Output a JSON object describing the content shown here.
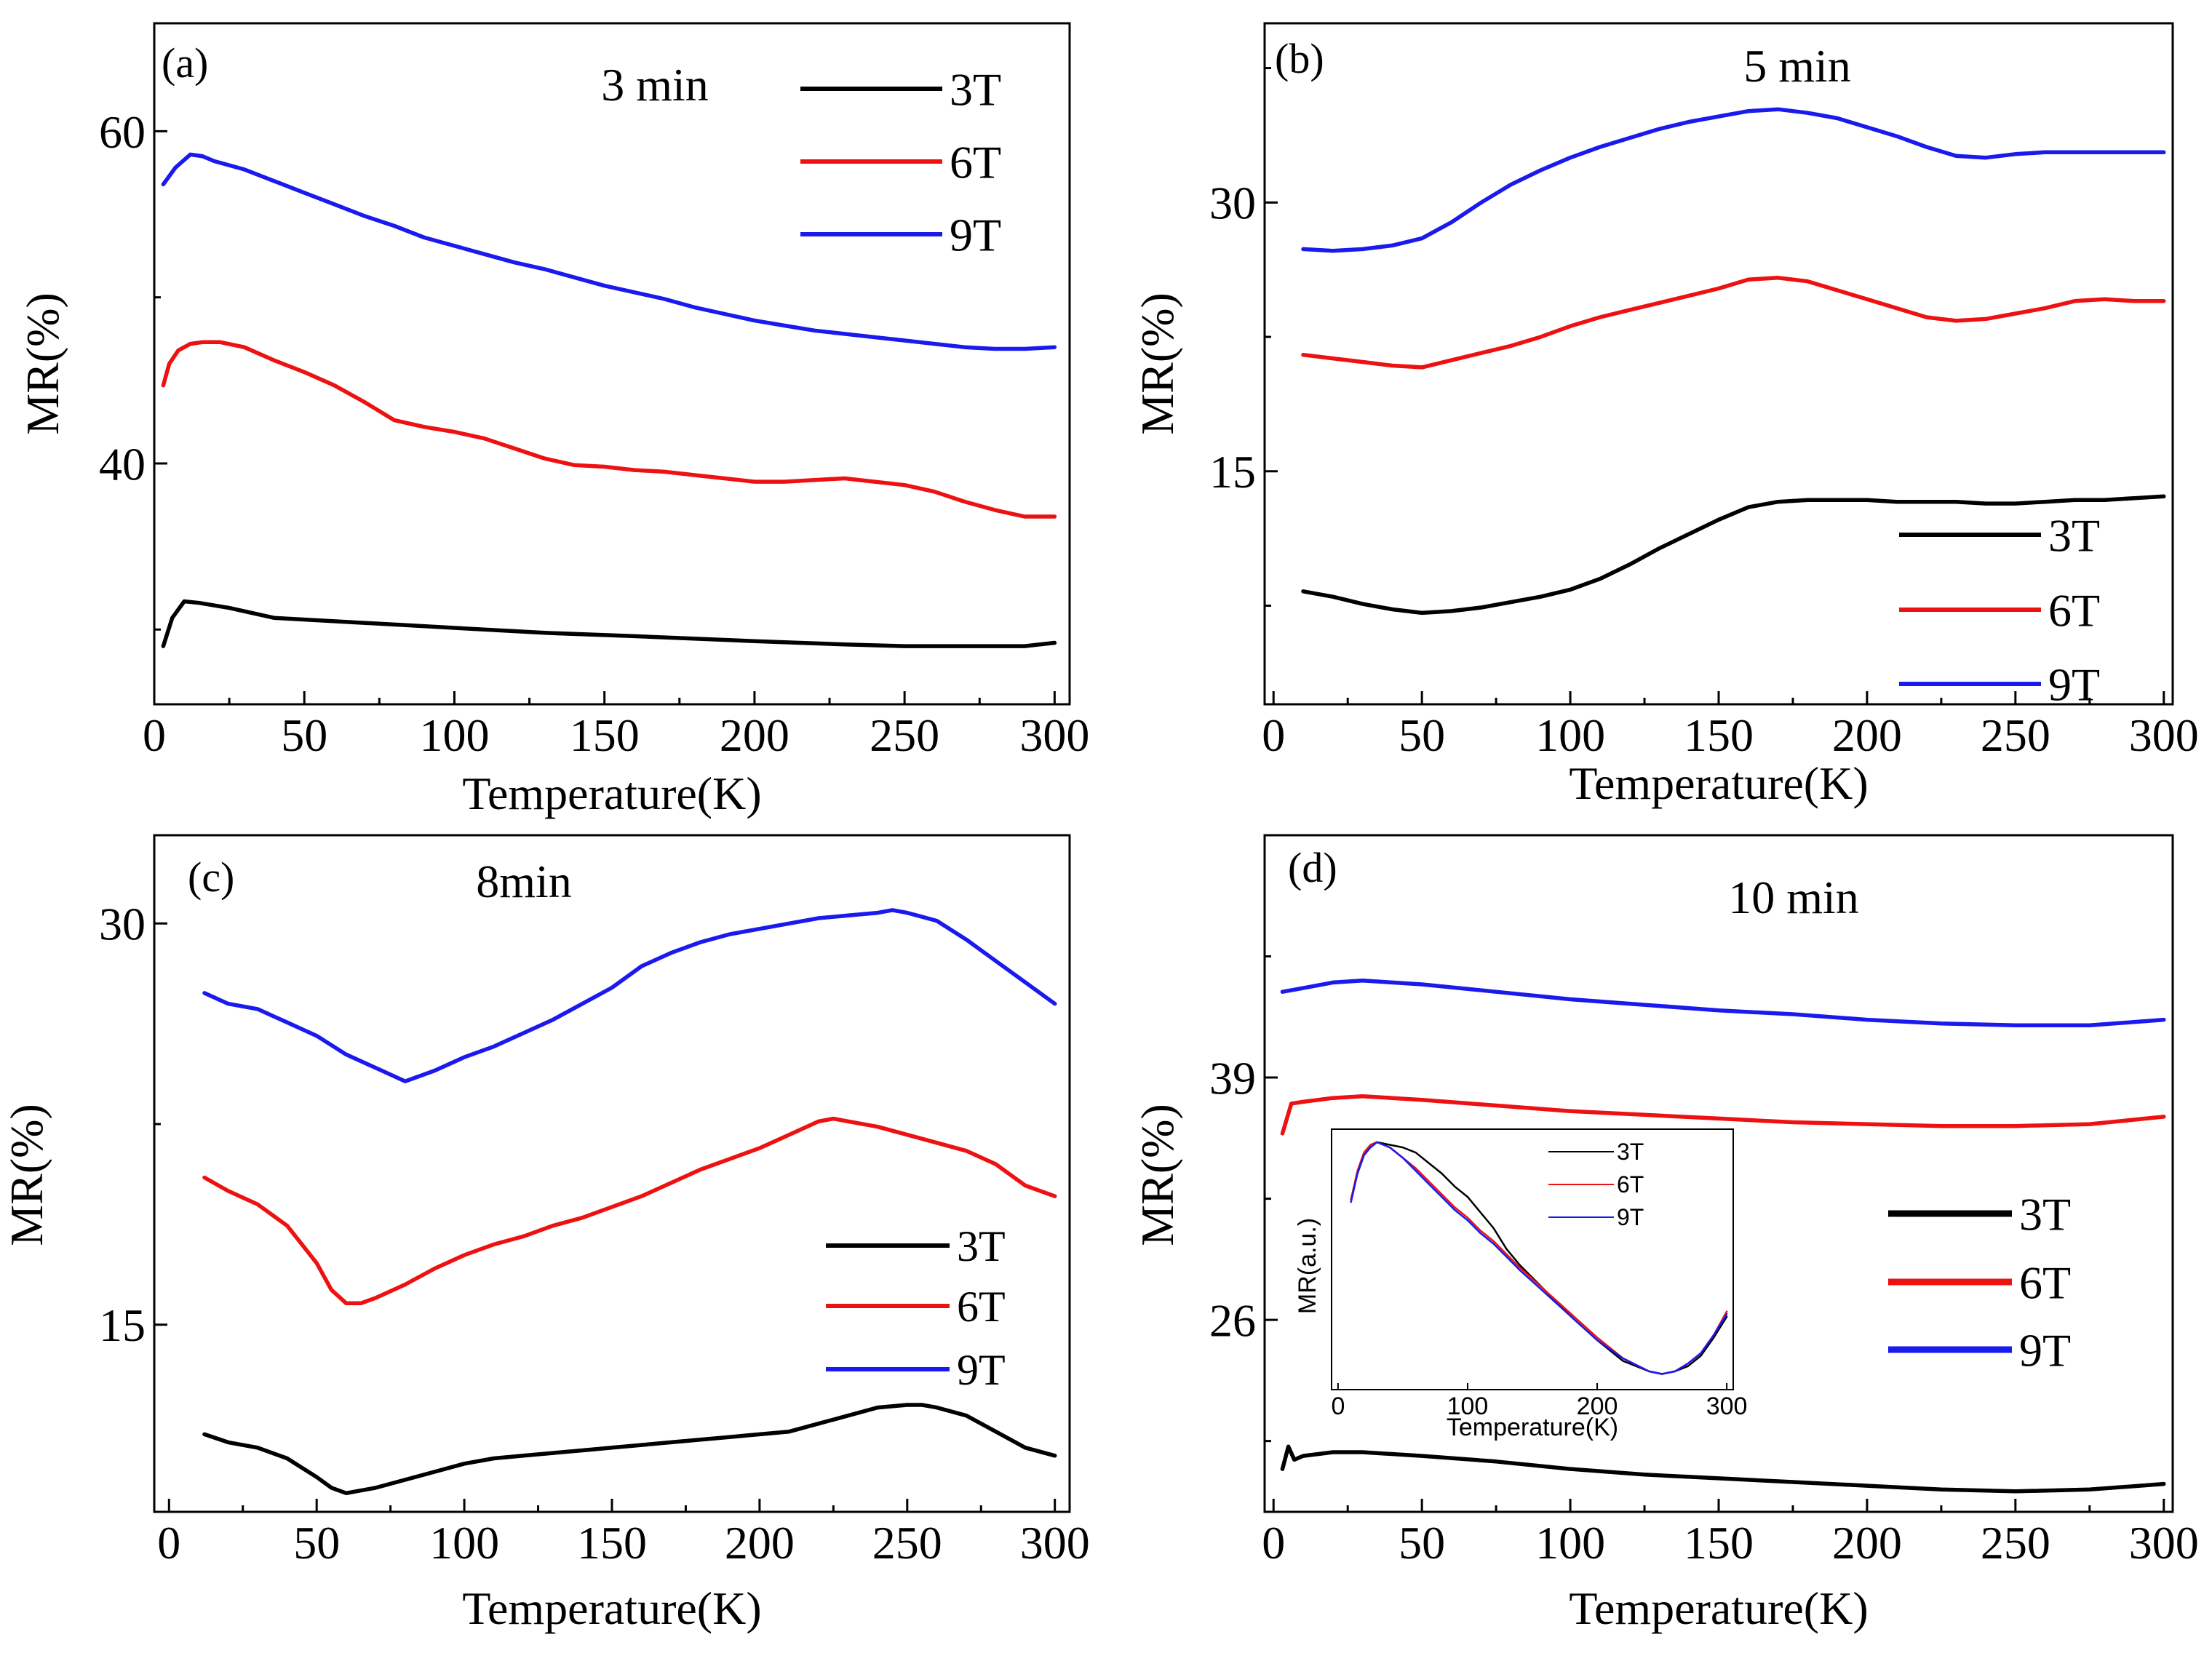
{
  "figure": {
    "panels": [
      "panel_a",
      "panel_b",
      "panel_c",
      "panel_d"
    ]
  },
  "colors": {
    "3T": "#000000",
    "6T": "#ee1111",
    "9T": "#1a1aee"
  },
  "chart_data": [
    {
      "id": "panel_a",
      "type": "line",
      "tag": "(a)",
      "title": "3 min",
      "xlabel": "Temperature(K)",
      "ylabel": "MR(%)",
      "xlim": [
        0,
        305
      ],
      "ylim": [
        25.5,
        66.5
      ],
      "xticks": [
        0,
        50,
        100,
        150,
        200,
        250,
        300
      ],
      "xticklabels": [
        "0",
        "50",
        "100",
        "150",
        "200",
        "250",
        "300"
      ],
      "yticks": [
        40,
        60
      ],
      "yticklabels": [
        "40",
        "60"
      ],
      "legend": [
        "3T",
        "6T",
        "9T"
      ],
      "legend_position": "top-right",
      "series": [
        {
          "name": "3T",
          "x": [
            3,
            6,
            10,
            15,
            25,
            40,
            60,
            80,
            100,
            130,
            160,
            200,
            230,
            250,
            260,
            275,
            290,
            300
          ],
          "y": [
            29,
            30.7,
            31.7,
            31.6,
            31.3,
            30.7,
            30.5,
            30.3,
            30.1,
            29.8,
            29.6,
            29.3,
            29.1,
            29.0,
            29.0,
            29.0,
            29.0,
            29.2
          ]
        },
        {
          "name": "6T",
          "x": [
            3,
            5,
            8,
            12,
            16,
            22,
            30,
            40,
            50,
            60,
            70,
            80,
            90,
            100,
            110,
            120,
            130,
            140,
            150,
            160,
            170,
            180,
            190,
            200,
            210,
            220,
            230,
            240,
            250,
            260,
            270,
            280,
            290,
            300
          ],
          "y": [
            44.7,
            46,
            46.8,
            47.2,
            47.3,
            47.3,
            47,
            46.2,
            45.5,
            44.7,
            43.7,
            42.6,
            42.2,
            41.9,
            41.5,
            40.9,
            40.3,
            39.9,
            39.8,
            39.6,
            39.5,
            39.3,
            39.1,
            38.9,
            38.9,
            39.0,
            39.1,
            38.9,
            38.7,
            38.3,
            37.7,
            37.2,
            36.8,
            36.8
          ]
        },
        {
          "name": "9T",
          "x": [
            3,
            7,
            12,
            16,
            20,
            30,
            40,
            50,
            60,
            70,
            80,
            90,
            100,
            110,
            120,
            130,
            140,
            150,
            160,
            170,
            180,
            190,
            200,
            210,
            220,
            230,
            240,
            250,
            260,
            270,
            280,
            290,
            300
          ],
          "y": [
            56.8,
            57.8,
            58.6,
            58.5,
            58.2,
            57.7,
            57,
            56.3,
            55.6,
            54.9,
            54.3,
            53.6,
            53.1,
            52.6,
            52.1,
            51.7,
            51.2,
            50.7,
            50.3,
            49.9,
            49.4,
            49.0,
            48.6,
            48.3,
            48.0,
            47.8,
            47.6,
            47.4,
            47.2,
            47.0,
            46.9,
            46.9,
            47.0
          ]
        }
      ]
    },
    {
      "id": "panel_b",
      "type": "line",
      "tag": "(b)",
      "title": "5 min",
      "xlabel": "Temperature(K)",
      "ylabel": "MR(%)",
      "xlim": [
        -3,
        303
      ],
      "ylim": [
        2,
        40
      ],
      "xticks": [
        0,
        50,
        100,
        150,
        200,
        250,
        300
      ],
      "xticklabels": [
        "0",
        "50",
        "100",
        "150",
        "200",
        "250",
        "300"
      ],
      "yticks": [
        15,
        30
      ],
      "yticklabels": [
        "15",
        "30"
      ],
      "legend": [
        "3T",
        "6T",
        "9T"
      ],
      "legend_position": "bottom-right",
      "series": [
        {
          "name": "3T",
          "x": [
            10,
            20,
            30,
            40,
            50,
            60,
            70,
            80,
            90,
            100,
            110,
            120,
            130,
            140,
            150,
            160,
            170,
            180,
            190,
            200,
            210,
            220,
            230,
            240,
            250,
            260,
            270,
            280,
            290,
            300
          ],
          "y": [
            8.3,
            8.0,
            7.6,
            7.3,
            7.1,
            7.2,
            7.4,
            7.7,
            8.0,
            8.4,
            9.0,
            9.8,
            10.7,
            11.5,
            12.3,
            13.0,
            13.3,
            13.4,
            13.4,
            13.4,
            13.3,
            13.3,
            13.3,
            13.2,
            13.2,
            13.3,
            13.4,
            13.4,
            13.5,
            13.6
          ]
        },
        {
          "name": "6T",
          "x": [
            10,
            20,
            30,
            40,
            50,
            60,
            70,
            80,
            90,
            100,
            110,
            120,
            130,
            140,
            150,
            160,
            170,
            180,
            190,
            200,
            210,
            220,
            230,
            240,
            250,
            260,
            270,
            280,
            290,
            300
          ],
          "y": [
            21.5,
            21.3,
            21.1,
            20.9,
            20.8,
            21.2,
            21.6,
            22.0,
            22.5,
            23.1,
            23.6,
            24.0,
            24.4,
            24.8,
            25.2,
            25.7,
            25.8,
            25.6,
            25.1,
            24.6,
            24.1,
            23.6,
            23.4,
            23.5,
            23.8,
            24.1,
            24.5,
            24.6,
            24.5,
            24.5
          ]
        },
        {
          "name": "9T",
          "x": [
            10,
            20,
            30,
            40,
            50,
            60,
            70,
            80,
            90,
            100,
            110,
            120,
            130,
            140,
            150,
            160,
            170,
            180,
            190,
            200,
            210,
            220,
            230,
            240,
            250,
            260,
            270,
            280,
            290,
            300
          ],
          "y": [
            27.4,
            27.3,
            27.4,
            27.6,
            28.0,
            28.9,
            30.0,
            31.0,
            31.8,
            32.5,
            33.1,
            33.6,
            34.1,
            34.5,
            34.8,
            35.1,
            35.2,
            35.0,
            34.7,
            34.2,
            33.7,
            33.1,
            32.6,
            32.5,
            32.7,
            32.8,
            32.8,
            32.8,
            32.8,
            32.8
          ]
        }
      ]
    },
    {
      "id": "panel_c",
      "type": "line",
      "tag": "(c)",
      "title": "8min",
      "xlabel": "Temperature(K)",
      "ylabel": "MR(%)",
      "xlim": [
        -5,
        305
      ],
      "ylim": [
        8,
        33.3
      ],
      "xticks": [
        0,
        50,
        100,
        150,
        200,
        250,
        300
      ],
      "xticklabels": [
        "0",
        "50",
        "100",
        "150",
        "200",
        "250",
        "300"
      ],
      "yticks": [
        15,
        30
      ],
      "yticklabels": [
        "15",
        "30"
      ],
      "legend": [
        "3T",
        "6T",
        "9T"
      ],
      "legend_position": "right",
      "series": [
        {
          "name": "3T",
          "x": [
            12,
            20,
            30,
            40,
            50,
            55,
            60,
            70,
            80,
            90,
            100,
            110,
            120,
            130,
            140,
            150,
            160,
            170,
            180,
            190,
            200,
            210,
            220,
            230,
            240,
            250,
            255,
            260,
            270,
            280,
            290,
            300
          ],
          "y": [
            10.9,
            10.6,
            10.4,
            10.0,
            9.3,
            8.9,
            8.7,
            8.9,
            9.2,
            9.5,
            9.8,
            10.0,
            10.1,
            10.2,
            10.3,
            10.4,
            10.5,
            10.6,
            10.7,
            10.8,
            10.9,
            11.0,
            11.3,
            11.6,
            11.9,
            12.0,
            12.0,
            11.9,
            11.6,
            11.0,
            10.4,
            10.1
          ]
        },
        {
          "name": "6T",
          "x": [
            12,
            20,
            30,
            40,
            50,
            55,
            60,
            65,
            70,
            80,
            90,
            100,
            110,
            120,
            130,
            140,
            150,
            160,
            170,
            180,
            190,
            200,
            210,
            220,
            225,
            230,
            240,
            250,
            260,
            270,
            280,
            290,
            300
          ],
          "y": [
            20.5,
            20.0,
            19.5,
            18.7,
            17.3,
            16.3,
            15.8,
            15.8,
            16.0,
            16.5,
            17.1,
            17.6,
            18.0,
            18.3,
            18.7,
            19.0,
            19.4,
            19.8,
            20.3,
            20.8,
            21.2,
            21.6,
            22.1,
            22.6,
            22.7,
            22.6,
            22.4,
            22.1,
            21.8,
            21.5,
            21.0,
            20.2,
            19.8
          ]
        },
        {
          "name": "9T",
          "x": [
            12,
            20,
            30,
            40,
            50,
            60,
            70,
            80,
            90,
            100,
            110,
            120,
            130,
            140,
            150,
            160,
            170,
            180,
            190,
            200,
            210,
            220,
            230,
            240,
            245,
            250,
            260,
            270,
            280,
            290,
            300
          ],
          "y": [
            27.4,
            27.0,
            26.8,
            26.3,
            25.8,
            25.1,
            24.6,
            24.1,
            24.5,
            25.0,
            25.4,
            25.9,
            26.4,
            27.0,
            27.6,
            28.4,
            28.9,
            29.3,
            29.6,
            29.8,
            30.0,
            30.2,
            30.3,
            30.4,
            30.5,
            30.4,
            30.1,
            29.4,
            28.6,
            27.8,
            27.0
          ]
        }
      ]
    },
    {
      "id": "panel_d",
      "type": "line",
      "tag": "(d)",
      "title": "10 min",
      "xlabel": "Temperature(K)",
      "ylabel": "MR(%)",
      "xlim": [
        -3,
        303
      ],
      "ylim": [
        15.7,
        52
      ],
      "xticks": [
        0,
        50,
        100,
        150,
        200,
        250,
        300
      ],
      "xticklabels": [
        "0",
        "50",
        "100",
        "150",
        "200",
        "250",
        "300"
      ],
      "yticks": [
        26,
        39
      ],
      "yticklabels": [
        "26",
        "39"
      ],
      "legend": [
        "3T",
        "6T",
        "9T"
      ],
      "legend_position": "right",
      "series": [
        {
          "name": "3T",
          "x": [
            3,
            5,
            7,
            10,
            20,
            30,
            50,
            75,
            100,
            125,
            150,
            175,
            200,
            225,
            250,
            275,
            300
          ],
          "y": [
            18.0,
            19.2,
            18.5,
            18.7,
            18.9,
            18.9,
            18.7,
            18.4,
            18.0,
            17.7,
            17.5,
            17.3,
            17.1,
            16.9,
            16.8,
            16.9,
            17.2
          ]
        },
        {
          "name": "6T",
          "x": [
            3,
            6,
            10,
            20,
            30,
            40,
            50,
            75,
            100,
            125,
            150,
            175,
            200,
            225,
            250,
            275,
            300
          ],
          "y": [
            36.0,
            37.6,
            37.7,
            37.9,
            38.0,
            37.9,
            37.8,
            37.5,
            37.2,
            37.0,
            36.8,
            36.6,
            36.5,
            36.4,
            36.4,
            36.5,
            36.9
          ]
        },
        {
          "name": "9T",
          "x": [
            3,
            10,
            20,
            30,
            40,
            50,
            75,
            100,
            125,
            150,
            175,
            200,
            225,
            250,
            275,
            300
          ],
          "y": [
            43.6,
            43.8,
            44.1,
            44.2,
            44.1,
            44.0,
            43.6,
            43.2,
            42.9,
            42.6,
            42.4,
            42.1,
            41.9,
            41.8,
            41.8,
            42.1
          ]
        }
      ]
    },
    {
      "id": "panel_d_inset",
      "type": "line",
      "title": "",
      "xlabel": "Temperature(K)",
      "ylabel": "MR(a.u.)",
      "xlim": [
        -5,
        305
      ],
      "ylim": [
        0,
        1
      ],
      "xticks": [
        0,
        100,
        200,
        300
      ],
      "xticklabels": [
        "0",
        "100",
        "200",
        "300"
      ],
      "yticks": [],
      "legend": [
        "3T",
        "6T",
        "9T"
      ],
      "legend_position": "top-right",
      "series": [
        {
          "name": "3T",
          "x": [
            10,
            15,
            20,
            25,
            30,
            40,
            50,
            60,
            70,
            80,
            90,
            100,
            110,
            120,
            130,
            140,
            160,
            180,
            200,
            220,
            240,
            250,
            260,
            270,
            280,
            290,
            300
          ],
          "y": [
            0.73,
            0.83,
            0.9,
            0.93,
            0.95,
            0.94,
            0.93,
            0.91,
            0.87,
            0.83,
            0.78,
            0.74,
            0.68,
            0.62,
            0.54,
            0.48,
            0.38,
            0.28,
            0.19,
            0.11,
            0.07,
            0.06,
            0.07,
            0.09,
            0.13,
            0.2,
            0.28
          ]
        },
        {
          "name": "6T",
          "x": [
            10,
            15,
            20,
            25,
            30,
            40,
            50,
            60,
            70,
            80,
            90,
            100,
            110,
            120,
            130,
            140,
            160,
            180,
            200,
            220,
            240,
            250,
            260,
            270,
            280,
            290,
            300
          ],
          "y": [
            0.73,
            0.84,
            0.91,
            0.94,
            0.95,
            0.93,
            0.89,
            0.85,
            0.8,
            0.75,
            0.7,
            0.66,
            0.61,
            0.57,
            0.52,
            0.47,
            0.38,
            0.29,
            0.2,
            0.12,
            0.07,
            0.06,
            0.07,
            0.1,
            0.14,
            0.21,
            0.3
          ]
        },
        {
          "name": "9T",
          "x": [
            10,
            15,
            20,
            25,
            30,
            40,
            50,
            60,
            70,
            80,
            90,
            100,
            110,
            120,
            130,
            140,
            160,
            180,
            200,
            220,
            240,
            250,
            260,
            270,
            280,
            290,
            300
          ],
          "y": [
            0.72,
            0.83,
            0.9,
            0.93,
            0.95,
            0.93,
            0.89,
            0.84,
            0.79,
            0.74,
            0.69,
            0.65,
            0.6,
            0.56,
            0.51,
            0.46,
            0.37,
            0.28,
            0.19,
            0.12,
            0.07,
            0.06,
            0.07,
            0.1,
            0.14,
            0.21,
            0.29
          ]
        }
      ]
    }
  ]
}
